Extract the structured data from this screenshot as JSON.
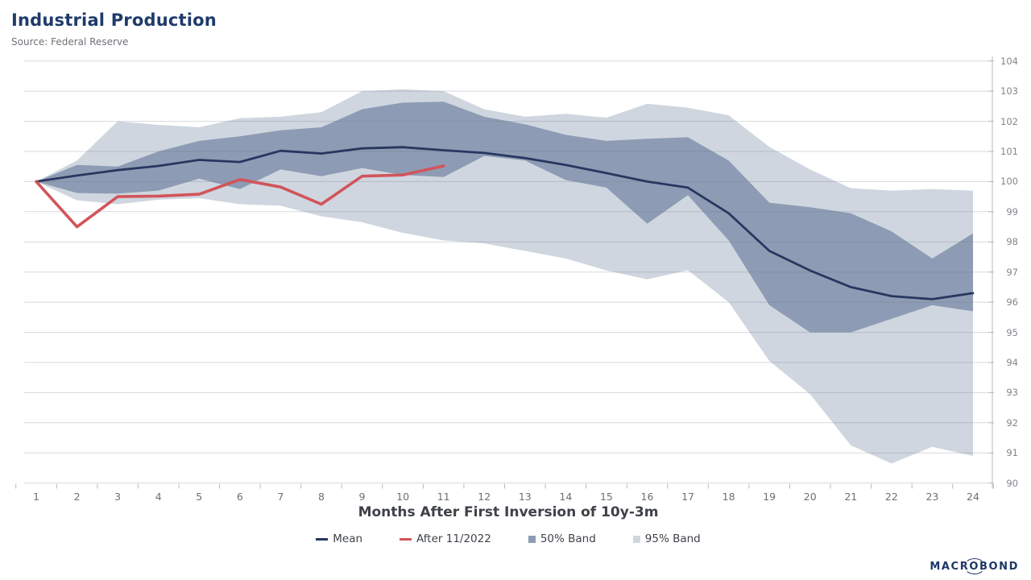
{
  "header": {
    "title": "Industrial Production",
    "source": "Source: Federal Reserve"
  },
  "chart_data": {
    "type": "line",
    "title": "Industrial Production",
    "xlabel": "Months After First Inversion of 10y-3m",
    "ylabel": "",
    "ylim": [
      90,
      104
    ],
    "yticks": [
      90,
      91,
      92,
      93,
      94,
      95,
      96,
      97,
      98,
      99,
      100,
      101,
      102,
      103,
      104
    ],
    "x": [
      1,
      2,
      3,
      4,
      5,
      6,
      7,
      8,
      9,
      10,
      11,
      12,
      13,
      14,
      15,
      16,
      17,
      18,
      19,
      20,
      21,
      22,
      23,
      24
    ],
    "grid": "horizontal",
    "legend_position": "bottom",
    "series": [
      {
        "name": "95% Band",
        "type": "band",
        "color": "#cfd6df",
        "upper": [
          100,
          100.7,
          102.0,
          101.88,
          101.8,
          102.1,
          102.15,
          102.3,
          103.0,
          103.06,
          103.0,
          102.4,
          102.15,
          102.25,
          102.12,
          102.58,
          102.45,
          102.2,
          101.15,
          100.4,
          99.78,
          99.7,
          99.75,
          99.7
        ],
        "lower": [
          100,
          99.38,
          99.25,
          99.4,
          99.45,
          99.25,
          99.2,
          98.85,
          98.65,
          98.3,
          98.05,
          97.95,
          97.7,
          97.45,
          97.05,
          96.76,
          97.06,
          96.0,
          94.05,
          92.95,
          91.25,
          90.65,
          91.2,
          90.9
        ]
      },
      {
        "name": "50% Band",
        "type": "band",
        "color": "#8d9cb4",
        "upper": [
          100,
          100.55,
          100.5,
          101.0,
          101.35,
          101.5,
          101.7,
          101.8,
          102.4,
          102.62,
          102.65,
          102.15,
          101.9,
          101.55,
          101.35,
          101.42,
          101.47,
          100.7,
          99.3,
          99.15,
          98.95,
          98.35,
          97.45,
          98.28
        ],
        "lower": [
          100,
          99.62,
          99.6,
          99.7,
          100.1,
          99.75,
          100.4,
          100.18,
          100.45,
          100.22,
          100.15,
          100.85,
          100.7,
          100.05,
          99.8,
          98.6,
          99.55,
          98.05,
          95.9,
          95.0,
          95.0,
          95.45,
          95.9,
          95.7
        ]
      },
      {
        "name": "Mean",
        "type": "line",
        "color": "#283760",
        "width": 2.8,
        "values": [
          100,
          100.2,
          100.38,
          100.52,
          100.72,
          100.65,
          101.02,
          100.93,
          101.1,
          101.14,
          101.04,
          100.95,
          100.78,
          100.55,
          100.28,
          100.0,
          99.8,
          98.95,
          97.7,
          97.05,
          96.5,
          96.2,
          96.1,
          96.3
        ]
      },
      {
        "name": "After 11/2022",
        "type": "line",
        "color": "#d2545b",
        "width": 3.6,
        "values": [
          100,
          98.5,
          99.5,
          99.52,
          99.58,
          100.07,
          99.82,
          99.25,
          100.18,
          100.22,
          100.52
        ]
      }
    ]
  },
  "legend": {
    "items": [
      {
        "label": "Mean",
        "marker": "line",
        "color": "#283760"
      },
      {
        "label": "After 11/2022",
        "marker": "line",
        "color": "#d2545b"
      },
      {
        "label": "50% Band",
        "marker": "square",
        "color": "#8d9cb4"
      },
      {
        "label": "95% Band",
        "marker": "square",
        "color": "#cfd6df"
      }
    ]
  },
  "branding": {
    "text": "MACROBOND",
    "prefix": "MACR",
    "o": "O",
    "suffix": "BOND"
  },
  "colors": {
    "background": "#ffffff",
    "title": "#1e3b6b",
    "grid": "rgba(110,116,128,0.28)",
    "axis": "#b6bac1",
    "y_tick_text": "#82858c",
    "x_tick_text": "#6c6f75",
    "axis_title_text": "#3e4248"
  }
}
